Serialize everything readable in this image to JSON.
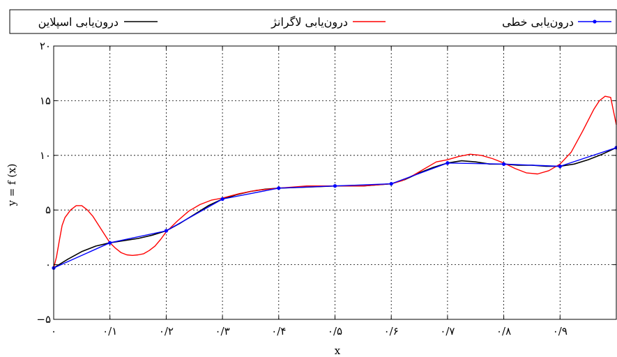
{
  "chart_data": {
    "type": "line",
    "title": "",
    "xlabel": "x",
    "ylabel": "y = f (x)",
    "xlim": [
      0,
      1
    ],
    "ylim": [
      -5,
      20
    ],
    "grid": true,
    "legend_position": "top",
    "x_ticks": [
      {
        "value": 0,
        "label": "۰"
      },
      {
        "value": 0.1,
        "label": "۰/۱"
      },
      {
        "value": 0.2,
        "label": "۰/۲"
      },
      {
        "value": 0.3,
        "label": "۰/۳"
      },
      {
        "value": 0.4,
        "label": "۰/۴"
      },
      {
        "value": 0.5,
        "label": "۰/۵"
      },
      {
        "value": 0.6,
        "label": "۰/۶"
      },
      {
        "value": 0.7,
        "label": "۰/۷"
      },
      {
        "value": 0.8,
        "label": "۰/۸"
      },
      {
        "value": 0.9,
        "label": "۰/۹"
      }
    ],
    "y_ticks": [
      {
        "value": -5,
        "label": "−۵"
      },
      {
        "value": 0,
        "label": "۰"
      },
      {
        "value": 5,
        "label": "۵"
      },
      {
        "value": 10,
        "label": "۱۰"
      },
      {
        "value": 15,
        "label": "۱۵"
      },
      {
        "value": 20,
        "label": "۲۰"
      }
    ],
    "series": [
      {
        "name": "درون‌یابی اسپلاین",
        "color": "#000000",
        "marker": "none",
        "x": [
          0,
          0.025,
          0.05,
          0.075,
          0.1,
          0.125,
          0.15,
          0.175,
          0.2,
          0.225,
          0.25,
          0.275,
          0.3,
          0.325,
          0.35,
          0.375,
          0.4,
          0.45,
          0.5,
          0.55,
          0.6,
          0.625,
          0.65,
          0.675,
          0.7,
          0.725,
          0.75,
          0.775,
          0.8,
          0.825,
          0.85,
          0.875,
          0.9,
          0.925,
          0.95,
          0.975,
          1.0
        ],
        "y": [
          -0.3,
          0.5,
          1.2,
          1.7,
          2.0,
          2.2,
          2.4,
          2.7,
          3.1,
          3.8,
          4.6,
          5.4,
          6.0,
          6.4,
          6.7,
          6.9,
          7.0,
          7.1,
          7.2,
          7.2,
          7.4,
          7.8,
          8.4,
          8.9,
          9.3,
          9.5,
          9.4,
          9.2,
          9.2,
          9.1,
          9.1,
          9.0,
          9.0,
          9.2,
          9.6,
          10.1,
          10.7
        ]
      },
      {
        "name": "درون‌یابی لاگرانژ",
        "color": "#ff0000",
        "marker": "none",
        "x": [
          0,
          0.005,
          0.01,
          0.015,
          0.02,
          0.03,
          0.04,
          0.05,
          0.06,
          0.07,
          0.08,
          0.09,
          0.1,
          0.11,
          0.12,
          0.13,
          0.14,
          0.15,
          0.16,
          0.17,
          0.18,
          0.19,
          0.2,
          0.22,
          0.24,
          0.26,
          0.28,
          0.3,
          0.33,
          0.36,
          0.4,
          0.45,
          0.5,
          0.55,
          0.6,
          0.62,
          0.64,
          0.66,
          0.68,
          0.7,
          0.72,
          0.74,
          0.76,
          0.78,
          0.8,
          0.82,
          0.84,
          0.86,
          0.88,
          0.9,
          0.92,
          0.94,
          0.96,
          0.97,
          0.98,
          0.99,
          1.0
        ],
        "y": [
          -0.3,
          0.7,
          2.2,
          3.6,
          4.3,
          5.0,
          5.4,
          5.4,
          5.0,
          4.4,
          3.6,
          2.8,
          2.0,
          1.5,
          1.1,
          0.9,
          0.85,
          0.9,
          1.0,
          1.3,
          1.7,
          2.3,
          3.0,
          4.0,
          4.9,
          5.5,
          5.9,
          6.1,
          6.5,
          6.8,
          7.0,
          7.2,
          7.2,
          7.2,
          7.4,
          7.7,
          8.2,
          8.8,
          9.4,
          9.6,
          9.9,
          10.1,
          10.0,
          9.7,
          9.3,
          8.8,
          8.4,
          8.3,
          8.6,
          9.2,
          10.3,
          12.2,
          14.2,
          15.0,
          15.4,
          15.3,
          12.8
        ]
      },
      {
        "name": "درون‌یابی خطی",
        "color": "#0000ff",
        "marker": "dot",
        "x": [
          0,
          0.1,
          0.2,
          0.3,
          0.4,
          0.5,
          0.6,
          0.7,
          0.8,
          0.9,
          1.0
        ],
        "y": [
          -0.3,
          2.0,
          3.1,
          6.0,
          7.0,
          7.2,
          7.4,
          9.3,
          9.2,
          9.0,
          10.7
        ]
      }
    ],
    "legend_order": [
      0,
      1,
      2
    ]
  }
}
